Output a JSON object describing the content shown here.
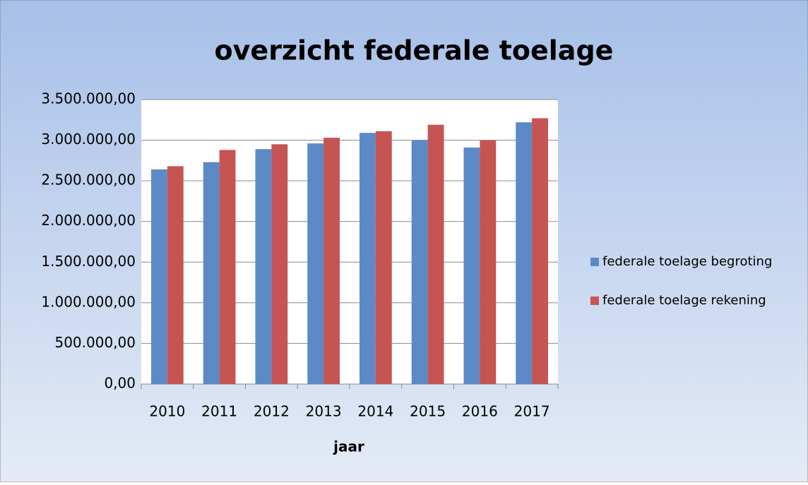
{
  "chart_data": {
    "type": "bar",
    "title": "overzicht federale toelage",
    "x_label": "jaar",
    "categories": [
      "2010",
      "2011",
      "2012",
      "2013",
      "2014",
      "2015",
      "2016",
      "2017"
    ],
    "series": [
      {
        "name": "federale toelage begroting",
        "color": "#5b8ac7",
        "values": [
          2640000,
          2730000,
          2890000,
          2960000,
          3090000,
          3000000,
          2910000,
          3220000
        ]
      },
      {
        "name": "federale toelage rekening",
        "color": "#c65452",
        "values": [
          2680000,
          2880000,
          2950000,
          3030000,
          3110000,
          3190000,
          3000000,
          3270000
        ]
      }
    ],
    "ylim": [
      0,
      3500000
    ],
    "yticks": [
      {
        "value": 0,
        "label": "0,00"
      },
      {
        "value": 500000,
        "label": "500.000,00"
      },
      {
        "value": 1000000,
        "label": "1.000.000,00"
      },
      {
        "value": 1500000,
        "label": "1.500.000,00"
      },
      {
        "value": 2000000,
        "label": "2.000.000,00"
      },
      {
        "value": 2500000,
        "label": "2.500.000,00"
      },
      {
        "value": 3000000,
        "label": "3.000.000,00"
      },
      {
        "value": 3500000,
        "label": "3.500.000,00"
      }
    ],
    "grid": true,
    "legend": "right"
  }
}
